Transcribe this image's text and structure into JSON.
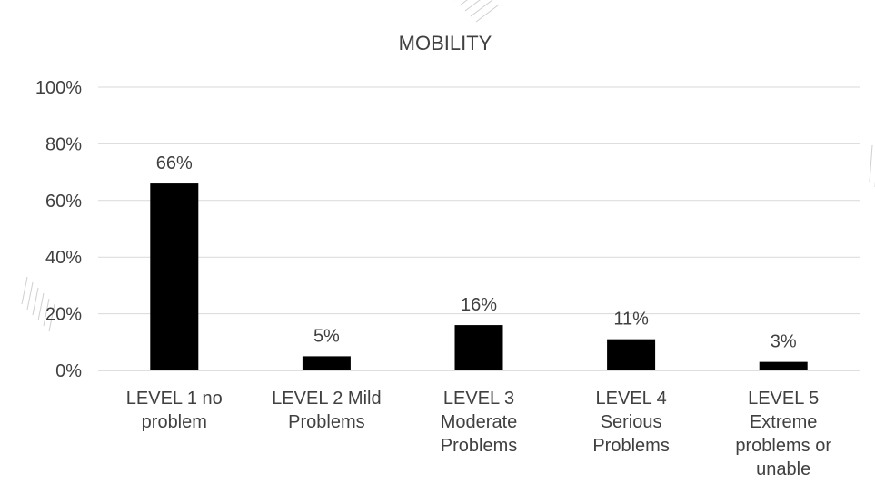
{
  "chart_data": {
    "type": "bar",
    "title": "MOBILITY",
    "categories": [
      [
        "LEVEL 1 no",
        "problem"
      ],
      [
        "LEVEL 2 Mild",
        "Problems"
      ],
      [
        "LEVEL 3",
        "Moderate",
        "Problems"
      ],
      [
        "LEVEL 4",
        "Serious",
        "Problems"
      ],
      [
        "LEVEL 5",
        "Extreme",
        "problems or",
        "unable"
      ]
    ],
    "values": [
      66,
      5,
      16,
      11,
      3
    ],
    "data_labels": [
      "66%",
      "5%",
      "16%",
      "11%",
      "3%"
    ],
    "ylim": [
      0,
      100
    ],
    "yticks": [
      0,
      20,
      40,
      60,
      80,
      100
    ],
    "ytick_labels": [
      "0%",
      "20%",
      "40%",
      "60%",
      "80%",
      "100%"
    ],
    "xlabel": "",
    "ylabel": "",
    "grid": true,
    "legend": "none",
    "bar_color": "#000000",
    "grid_color": "#d9d9d9",
    "text_color": "#404040"
  }
}
